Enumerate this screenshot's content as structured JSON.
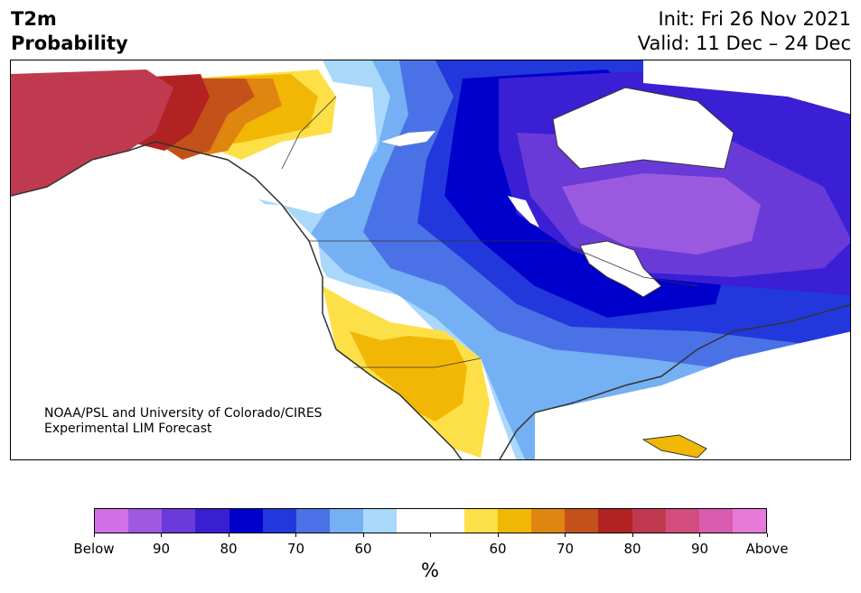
{
  "header": {
    "title_line1": "T2m",
    "title_line2": "Probability",
    "init_line": "Init: Fri 26 Nov 2021",
    "valid_line": "Valid: 11 Dec – 24 Dec"
  },
  "credit": {
    "line1": "NOAA/PSL and University of Colorado/CIRES",
    "line2": "Experimental LIM Forecast"
  },
  "colors": {
    "alaska_red": "#c03a4f",
    "dark_red": "#b22222",
    "orange_dark": "#c5511a",
    "orange": "#de8610",
    "gold": "#f2b705",
    "yellow": "#fde047",
    "pale_blue": "#aad8fb",
    "light_blue": "#74b0f3",
    "mid_blue": "#4a72e6",
    "blue": "#2338dc",
    "deep_blue": "#0000cc",
    "indigo": "#3a1fd4",
    "violet": "#6a3ad8",
    "lavender": "#9a5ae0",
    "coast": "#333333"
  },
  "legend": {
    "unit": "%",
    "swatches": [
      "#d36fe8",
      "#9f58e2",
      "#6c39da",
      "#3a1fd2",
      "#0000cc",
      "#2338dc",
      "#4a72e6",
      "#74b0f3",
      "#aad8fb",
      "#ffffff",
      "#ffffff",
      "#fde047",
      "#f2b705",
      "#de8610",
      "#c5511a",
      "#b22222",
      "#c03a4f",
      "#d24d7e",
      "#d95cae",
      "#e67ad8"
    ],
    "tick_labels": [
      "Below",
      "90",
      "80",
      "70",
      "60",
      "",
      "60",
      "70",
      "80",
      "90",
      "Above"
    ]
  }
}
